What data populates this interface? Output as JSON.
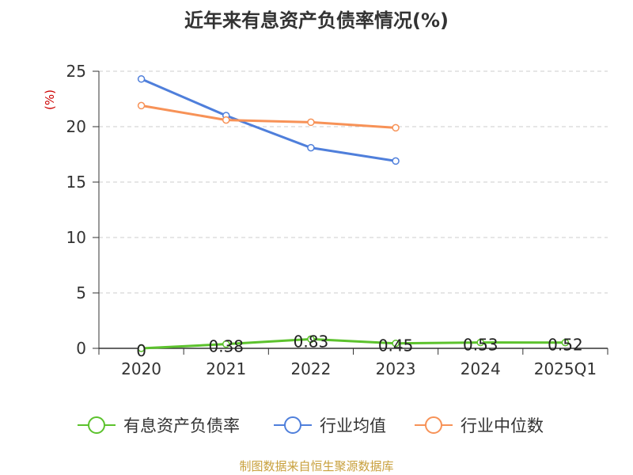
{
  "chart_data": {
    "type": "line",
    "title": "近年来有息资产负债率情况(%)",
    "ylabel": "(%)",
    "xlabel": "",
    "categories": [
      "2020",
      "2021",
      "2022",
      "2023",
      "2024",
      "2025Q1"
    ],
    "ylim": [
      0,
      25
    ],
    "yticks": [
      0,
      5,
      10,
      15,
      20,
      25
    ],
    "grid": true,
    "legend_position": "bottom",
    "series": [
      {
        "name": "有息资产负债率",
        "color": "#5cc22d",
        "values": [
          0,
          0.38,
          0.83,
          0.45,
          0.53,
          0.52
        ],
        "labels": [
          "0",
          "0.38",
          "0.83",
          "0.45",
          "0.53",
          "0.52"
        ],
        "show_labels": true
      },
      {
        "name": "行业均值",
        "color": "#4f7fdb",
        "values": [
          24.3,
          21.0,
          18.1,
          16.9,
          null,
          null
        ],
        "show_labels": false
      },
      {
        "name": "行业中位数",
        "color": "#f79257",
        "values": [
          21.9,
          20.6,
          20.4,
          19.9,
          null,
          null
        ],
        "show_labels": false
      }
    ]
  },
  "footer": {
    "source": "制图数据来自恒生聚源数据库"
  }
}
